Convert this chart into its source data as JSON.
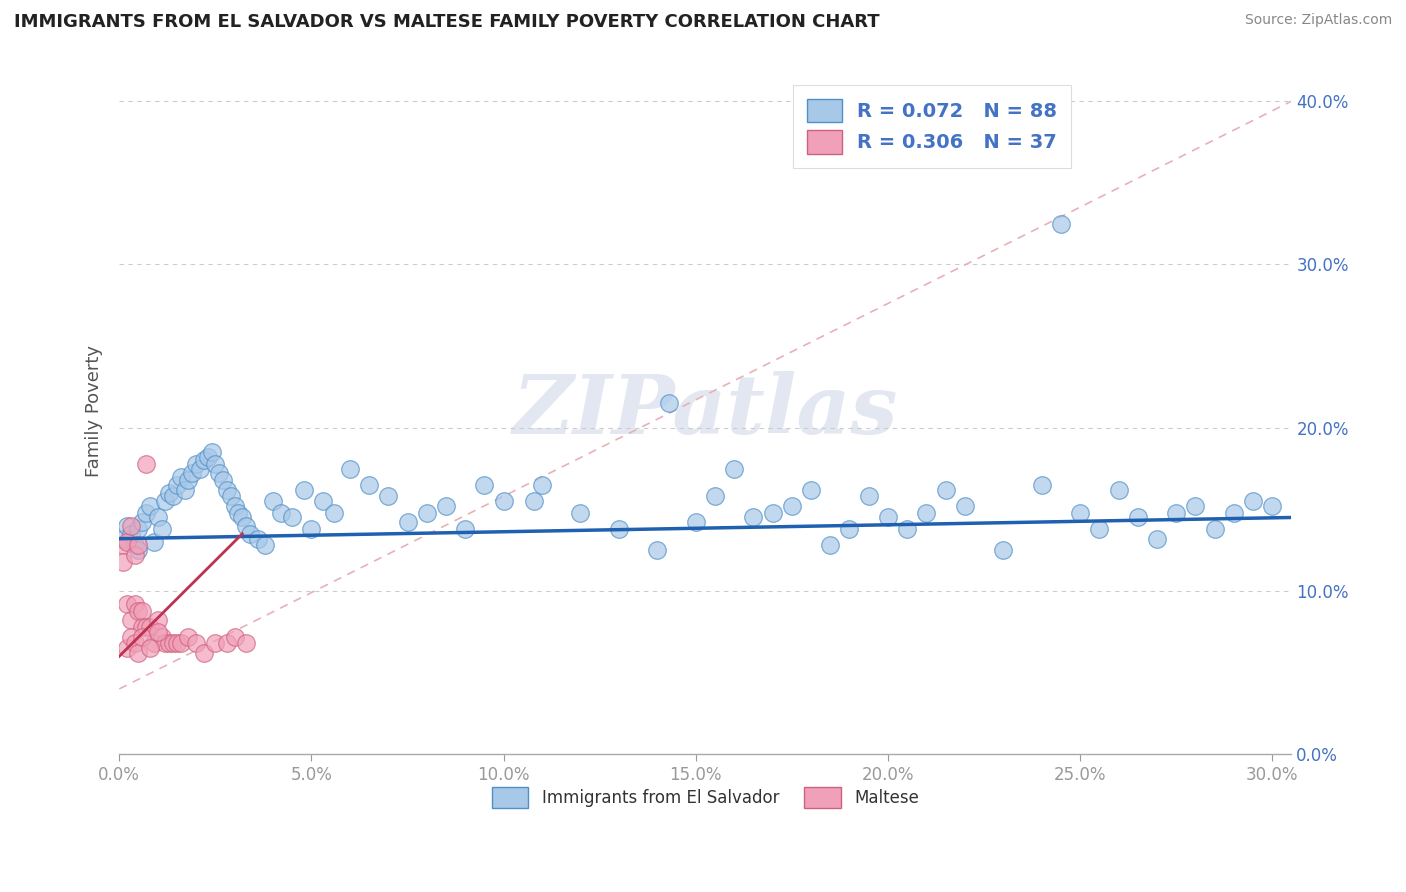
{
  "title": "IMMIGRANTS FROM EL SALVADOR VS MALTESE FAMILY POVERTY CORRELATION CHART",
  "source": "Source: ZipAtlas.com",
  "xlim": [
    0.0,
    0.305
  ],
  "ylim": [
    0.0,
    0.42
  ],
  "blue_color": "#a8c8e8",
  "pink_color": "#f0a0b8",
  "blue_edge": "#5090c8",
  "pink_edge": "#d06080",
  "trend_blue": "#2060b0",
  "trend_pink": "#c03050",
  "ref_line_color": "#e8b0b8",
  "R_blue": 0.072,
  "N_blue": 88,
  "R_pink": 0.306,
  "N_pink": 37,
  "watermark": "ZIPatlas",
  "blue_scatter_x": [
    0.001,
    0.002,
    0.003,
    0.004,
    0.005,
    0.005,
    0.006,
    0.007,
    0.008,
    0.009,
    0.01,
    0.011,
    0.012,
    0.013,
    0.014,
    0.015,
    0.016,
    0.017,
    0.018,
    0.019,
    0.02,
    0.021,
    0.022,
    0.023,
    0.024,
    0.025,
    0.026,
    0.027,
    0.028,
    0.029,
    0.03,
    0.031,
    0.032,
    0.033,
    0.034,
    0.036,
    0.038,
    0.04,
    0.042,
    0.045,
    0.048,
    0.05,
    0.053,
    0.056,
    0.06,
    0.065,
    0.07,
    0.075,
    0.08,
    0.085,
    0.09,
    0.095,
    0.1,
    0.11,
    0.12,
    0.13,
    0.14,
    0.15,
    0.155,
    0.16,
    0.165,
    0.17,
    0.175,
    0.18,
    0.185,
    0.19,
    0.195,
    0.2,
    0.205,
    0.21,
    0.215,
    0.22,
    0.23,
    0.24,
    0.25,
    0.255,
    0.26,
    0.265,
    0.27,
    0.275,
    0.28,
    0.285,
    0.29,
    0.295,
    0.3,
    0.143,
    0.108,
    0.245
  ],
  "blue_scatter_y": [
    0.132,
    0.14,
    0.135,
    0.128,
    0.138,
    0.125,
    0.142,
    0.148,
    0.152,
    0.13,
    0.145,
    0.138,
    0.155,
    0.16,
    0.158,
    0.165,
    0.17,
    0.162,
    0.168,
    0.172,
    0.178,
    0.175,
    0.18,
    0.182,
    0.185,
    0.178,
    0.172,
    0.168,
    0.162,
    0.158,
    0.152,
    0.148,
    0.145,
    0.14,
    0.135,
    0.132,
    0.128,
    0.155,
    0.148,
    0.145,
    0.162,
    0.138,
    0.155,
    0.148,
    0.175,
    0.165,
    0.158,
    0.142,
    0.148,
    0.152,
    0.138,
    0.165,
    0.155,
    0.165,
    0.148,
    0.138,
    0.125,
    0.142,
    0.158,
    0.175,
    0.145,
    0.148,
    0.152,
    0.162,
    0.128,
    0.138,
    0.158,
    0.145,
    0.138,
    0.148,
    0.162,
    0.152,
    0.125,
    0.165,
    0.148,
    0.138,
    0.162,
    0.145,
    0.132,
    0.148,
    0.152,
    0.138,
    0.148,
    0.155,
    0.152,
    0.215,
    0.155,
    0.325
  ],
  "pink_scatter_x": [
    0.001,
    0.001,
    0.002,
    0.002,
    0.003,
    0.003,
    0.004,
    0.004,
    0.005,
    0.005,
    0.006,
    0.006,
    0.007,
    0.007,
    0.008,
    0.009,
    0.01,
    0.011,
    0.012,
    0.013,
    0.014,
    0.015,
    0.016,
    0.018,
    0.02,
    0.022,
    0.025,
    0.028,
    0.03,
    0.033,
    0.002,
    0.003,
    0.004,
    0.005,
    0.006,
    0.008,
    0.01
  ],
  "pink_scatter_y": [
    0.128,
    0.118,
    0.13,
    0.092,
    0.14,
    0.082,
    0.122,
    0.092,
    0.128,
    0.088,
    0.088,
    0.078,
    0.178,
    0.078,
    0.078,
    0.068,
    0.082,
    0.072,
    0.068,
    0.068,
    0.068,
    0.068,
    0.068,
    0.072,
    0.068,
    0.062,
    0.068,
    0.068,
    0.072,
    0.068,
    0.065,
    0.072,
    0.068,
    0.062,
    0.072,
    0.065,
    0.075
  ],
  "yticks": [
    0.0,
    0.1,
    0.2,
    0.3,
    0.4
  ],
  "xticks": [
    0.0,
    0.05,
    0.1,
    0.15,
    0.2,
    0.25,
    0.3
  ]
}
